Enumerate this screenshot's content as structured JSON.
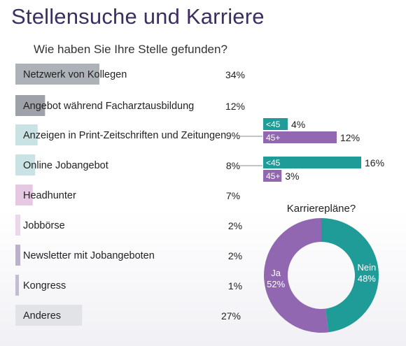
{
  "title": "Stellensuche und Karriere",
  "subtitle": "Wie haben Sie Ihre Stelle gefunden?",
  "colors": {
    "title": "#3c2e5e",
    "teal": "#1f9c98",
    "purple": "#9067b0"
  },
  "chart_data": [
    {
      "type": "bar",
      "orientation": "horizontal",
      "categories": [
        "Netzwerk von Kollegen",
        "Angebot während Facharztausbildung",
        "Anzeigen in Print-Zeitschriften und Zeitungen",
        "Online Jobangebot",
        "Headhunter",
        "Jobbörse",
        "Newsletter mit Jobangeboten",
        "Kongress",
        "Anderes"
      ],
      "values": [
        34,
        12,
        9,
        8,
        7,
        2,
        2,
        1,
        27
      ],
      "value_labels": [
        "34%",
        "12%",
        "9%",
        "8%",
        "7%",
        "2%",
        "2%",
        "1%",
        "27%"
      ],
      "colors": [
        "#adb1b8",
        "#9ea2a8",
        "#c9e3e5",
        "#c9e3e5",
        "#e6c8e2",
        "#ead8ea",
        "#b9b2c8",
        "#c3bdd0",
        "#e1e3e6"
      ]
    },
    {
      "type": "bar",
      "orientation": "horizontal",
      "parent_category": "Anzeigen in Print-Zeitschriften und Zeitungen",
      "categories": [
        "<45",
        "45+"
      ],
      "values": [
        4,
        12
      ],
      "value_labels": [
        "4%",
        "12%"
      ],
      "colors": [
        "#1f9c98",
        "#9067b0"
      ]
    },
    {
      "type": "bar",
      "orientation": "horizontal",
      "parent_category": "Online Jobangebot",
      "categories": [
        "<45",
        "45+"
      ],
      "values": [
        16,
        3
      ],
      "value_labels": [
        "16%",
        "3%"
      ],
      "colors": [
        "#1f9c98",
        "#9067b0"
      ]
    },
    {
      "type": "pie",
      "donut": true,
      "title": "Karrierepläne?",
      "slices": [
        {
          "label": "Nein",
          "value": 48,
          "value_label": "48%",
          "color": "#1f9c98"
        },
        {
          "label": "Ja",
          "value": 52,
          "value_label": "52%",
          "color": "#9067b0"
        }
      ]
    }
  ]
}
